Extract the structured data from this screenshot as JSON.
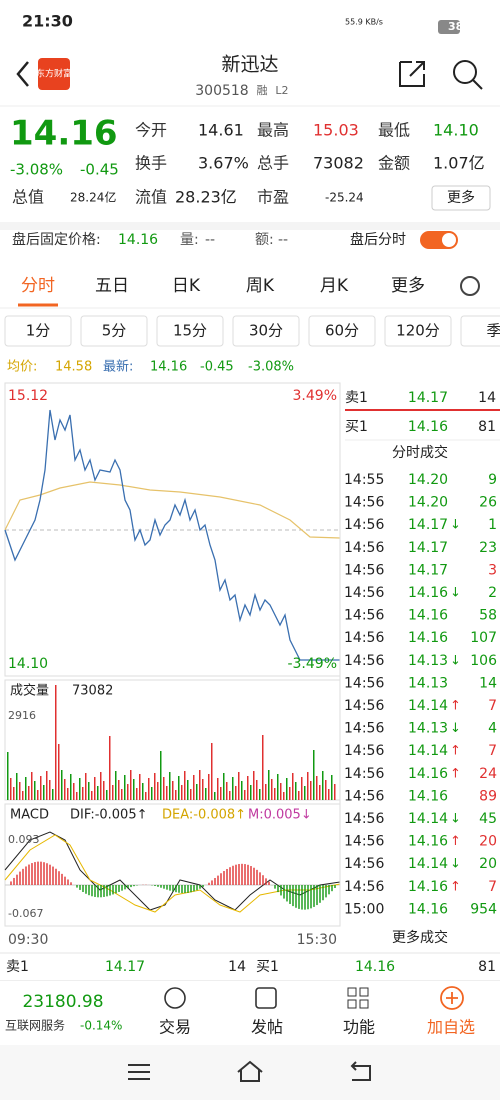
{
  "status": {
    "time": "21:30",
    "speed": "55.9 KB/s",
    "battery": "38"
  },
  "header": {
    "logo": "东方财富",
    "title": "新迅达",
    "code": "300518",
    "tags": [
      "融",
      "L2"
    ]
  },
  "quote": {
    "price": "14.16",
    "change_pct": "-3.08%",
    "change": "-0.45",
    "fields": [
      {
        "label": "今开",
        "value": "14.61",
        "color": "#222"
      },
      {
        "label": "最高",
        "value": "15.03",
        "color": "#e03030"
      },
      {
        "label": "最低",
        "value": "14.10",
        "color": "#119911"
      },
      {
        "label": "换手",
        "value": "3.67%",
        "color": "#222"
      },
      {
        "label": "总手",
        "value": "73082",
        "color": "#222"
      },
      {
        "label": "金额",
        "value": "1.07亿",
        "color": "#222"
      },
      {
        "label": "总值",
        "value": "28.24亿",
        "color": "#222"
      },
      {
        "label": "流值",
        "value": "28.23亿",
        "color": "#222"
      },
      {
        "label": "市盈",
        "value": "-25.24",
        "color": "#222"
      }
    ],
    "more": "更多"
  },
  "after_hours": {
    "label": "盘后固定价格:",
    "price": "14.16",
    "vol_label": "量:",
    "vol": "--",
    "amt_label": "额:",
    "amt": "--",
    "toggle": "盘后分时"
  },
  "tabs": [
    "分时",
    "五日",
    "日K",
    "周K",
    "月K",
    "更多"
  ],
  "periods": [
    "1分",
    "5分",
    "15分",
    "30分",
    "60分",
    "120分",
    "季"
  ],
  "summary": {
    "avg_label": "均价:",
    "avg": "14.58",
    "last_label": "最新:",
    "last": "14.16",
    "change": "-0.45",
    "change_pct": "-3.08%"
  },
  "chart": {
    "y_top": "15.12",
    "y_top_pct": "3.49%",
    "y_bottom": "14.10",
    "y_bottom_pct": "-3.49%",
    "vol_label": "成交量",
    "vol": "73082",
    "vol_max": "2916",
    "macd": "MACD",
    "dif": "DIF:-0.005↑",
    "dea": "DEA:-0.008↑",
    "m": "M:0.005↓",
    "macd_top": "0.093",
    "macd_bottom": "-0.067",
    "time_start": "09:30",
    "time_end": "15:30"
  },
  "book": {
    "sell": [
      "卖1",
      "14.17",
      "14"
    ],
    "buy": [
      "买1",
      "14.16",
      "81"
    ],
    "title": "分时成交",
    "more": "更多成交",
    "trades": [
      {
        "time": "14:55",
        "price": "14.20",
        "arrow": "",
        "vol": "9",
        "color": "#119911"
      },
      {
        "time": "14:56",
        "price": "14.20",
        "arrow": "",
        "vol": "26",
        "color": "#119911"
      },
      {
        "time": "14:56",
        "price": "14.17",
        "arrow": "↓",
        "vol": "1",
        "color": "#119911"
      },
      {
        "time": "14:56",
        "price": "14.17",
        "arrow": "",
        "vol": "23",
        "color": "#119911"
      },
      {
        "time": "14:56",
        "price": "14.17",
        "arrow": "",
        "vol": "3",
        "color": "#e03030"
      },
      {
        "time": "14:56",
        "price": "14.16",
        "arrow": "↓",
        "vol": "2",
        "color": "#119911"
      },
      {
        "time": "14:56",
        "price": "14.16",
        "arrow": "",
        "vol": "58",
        "color": "#119911"
      },
      {
        "time": "14:56",
        "price": "14.16",
        "arrow": "",
        "vol": "107",
        "color": "#119911"
      },
      {
        "time": "14:56",
        "price": "14.13",
        "arrow": "↓",
        "vol": "106",
        "color": "#119911"
      },
      {
        "time": "14:56",
        "price": "14.13",
        "arrow": "",
        "vol": "14",
        "color": "#119911"
      },
      {
        "time": "14:56",
        "price": "14.14",
        "arrow": "↑",
        "vol": "7",
        "color": "#e03030"
      },
      {
        "time": "14:56",
        "price": "14.13",
        "arrow": "↓",
        "vol": "4",
        "color": "#119911"
      },
      {
        "time": "14:56",
        "price": "14.14",
        "arrow": "↑",
        "vol": "7",
        "color": "#e03030"
      },
      {
        "time": "14:56",
        "price": "14.16",
        "arrow": "↑",
        "vol": "24",
        "color": "#e03030"
      },
      {
        "time": "14:56",
        "price": "14.16",
        "arrow": "",
        "vol": "89",
        "color": "#e03030"
      },
      {
        "time": "14:56",
        "price": "14.14",
        "arrow": "↓",
        "vol": "45",
        "color": "#119911"
      },
      {
        "time": "14:56",
        "price": "14.16",
        "arrow": "↑",
        "vol": "20",
        "color": "#e03030"
      },
      {
        "time": "14:56",
        "price": "14.14",
        "arrow": "↓",
        "vol": "20",
        "color": "#119911"
      },
      {
        "time": "14:56",
        "price": "14.16",
        "arrow": "↑",
        "vol": "7",
        "color": "#e03030"
      },
      {
        "time": "15:00",
        "price": "14.16",
        "arrow": "",
        "vol": "954",
        "color": "#119911"
      }
    ]
  },
  "bottom": {
    "sell": "卖1",
    "sell_price": "14.17",
    "sell_vol": "14",
    "buy": "买1",
    "buy_price": "14.16",
    "buy_vol": "81"
  },
  "footer": {
    "index": "23180.98",
    "index_name": "互联网服务",
    "index_change": "-0.14%",
    "nav": [
      "交易",
      "发帖",
      "功能",
      "加自选"
    ]
  }
}
